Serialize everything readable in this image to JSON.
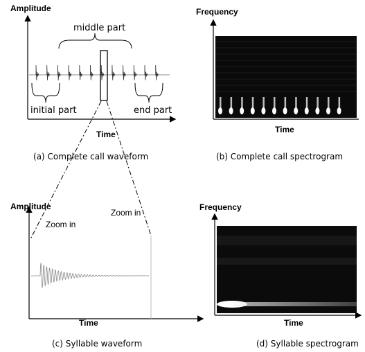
{
  "panels": [
    {
      "y_axis": "Amplitude",
      "x_axis": "Time",
      "caption": "(a) Complete call waveform",
      "annotations": [
        "middle part",
        "initial part",
        "end part"
      ]
    },
    {
      "y_axis": "Frequency",
      "x_axis": "Time",
      "caption": "(b) Complete call spectrogram"
    },
    {
      "y_axis": "Amplitude",
      "x_axis": "Time",
      "caption": "(c) Syllable waveform",
      "annotations": [
        "Zoom in",
        "Zoom in"
      ]
    },
    {
      "y_axis": "Frequency",
      "x_axis": "Time",
      "caption": "(d) Syllable spectrogram"
    }
  ]
}
